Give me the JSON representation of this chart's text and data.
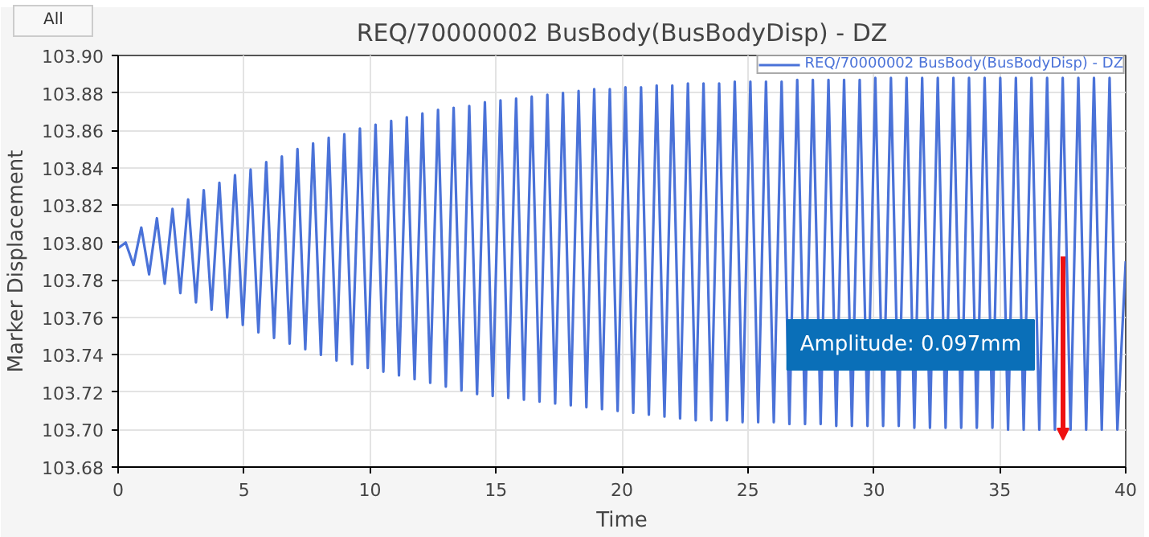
{
  "chart_data": {
    "type": "line",
    "title": "REQ/70000002 BusBody(BusBodyDisp) - DZ",
    "xlabel": "Time",
    "ylabel": "Marker Displacement",
    "xlim": [
      0,
      40
    ],
    "xticks": [
      0,
      5,
      10,
      15,
      20,
      25,
      30,
      35,
      40
    ],
    "ylim": [
      103.68,
      103.9
    ],
    "yticks": [
      {
        "value": 103.68,
        "label": "103.68"
      },
      {
        "value": 103.7,
        "label": "103.70"
      },
      {
        "value": 103.72,
        "label": "103.72"
      },
      {
        "value": 103.74,
        "label": "103.74"
      },
      {
        "value": 103.76,
        "label": "103.76"
      },
      {
        "value": 103.78,
        "label": "103.78"
      },
      {
        "value": 103.8,
        "label": "103.80"
      },
      {
        "value": 103.82,
        "label": "103.82"
      },
      {
        "value": 103.84,
        "label": "103.84"
      },
      {
        "value": 103.86,
        "label": "103.86"
      },
      {
        "value": 103.88,
        "label": "103.88"
      },
      {
        "value": 103.9,
        "label": "103.90"
      }
    ],
    "grid": true,
    "legend": "top right",
    "annotations": [
      "All",
      "Amplitude: 0.097mm"
    ],
    "series": [
      {
        "name": "REQ/70000002 BusBody(BusBodyDisp) - DZ",
        "color": "#4a72d8",
        "x": [
          0,
          0.3,
          0.61,
          0.92,
          1.23,
          1.54,
          1.85,
          2.16,
          2.47,
          2.78,
          3.09,
          3.4,
          3.71,
          4.02,
          4.33,
          4.64,
          4.95,
          5.26,
          5.57,
          5.88,
          6.19,
          6.5,
          6.81,
          7.12,
          7.43,
          7.74,
          8.05,
          8.36,
          8.67,
          8.98,
          9.29,
          9.6,
          9.91,
          10.22,
          10.53,
          10.84,
          11.15,
          11.46,
          11.77,
          12.08,
          12.39,
          12.7,
          13.01,
          13.32,
          13.63,
          13.94,
          14.25,
          14.56,
          14.87,
          15.18,
          15.49,
          15.8,
          16.11,
          16.42,
          16.73,
          17.04,
          17.35,
          17.66,
          17.97,
          18.28,
          18.59,
          18.9,
          19.21,
          19.52,
          19.83,
          20.14,
          20.45,
          20.76,
          21.07,
          21.38,
          21.69,
          22.0,
          22.31,
          22.62,
          22.93,
          23.24,
          23.55,
          23.86,
          24.17,
          24.48,
          24.79,
          25.1,
          25.41,
          25.72,
          26.03,
          26.34,
          26.65,
          26.96,
          27.27,
          27.58,
          27.89,
          28.2,
          28.51,
          28.82,
          29.13,
          29.44,
          29.75,
          30.06,
          30.37,
          30.68,
          30.99,
          31.3,
          31.61,
          31.92,
          32.23,
          32.54,
          32.85,
          33.16,
          33.47,
          33.78,
          34.09,
          34.4,
          34.71,
          35.02,
          35.33,
          35.64,
          35.95,
          36.26,
          36.57,
          36.88,
          37.19,
          37.5,
          37.81,
          38.12,
          38.43,
          38.74,
          39.05,
          39.36,
          39.67,
          40.0
        ],
        "values": [
          103.797,
          103.8,
          103.788,
          103.808,
          103.783,
          103.813,
          103.778,
          103.818,
          103.773,
          103.823,
          103.768,
          103.828,
          103.764,
          103.832,
          103.76,
          103.836,
          103.756,
          103.839,
          103.752,
          103.843,
          103.749,
          103.846,
          103.746,
          103.85,
          103.743,
          103.853,
          103.74,
          103.856,
          103.737,
          103.858,
          103.735,
          103.861,
          103.733,
          103.863,
          103.731,
          103.865,
          103.729,
          103.867,
          103.727,
          103.869,
          103.725,
          103.871,
          103.723,
          103.872,
          103.721,
          103.873,
          103.719,
          103.875,
          103.718,
          103.876,
          103.717,
          103.877,
          103.716,
          103.878,
          103.715,
          103.879,
          103.714,
          103.88,
          103.713,
          103.881,
          103.712,
          103.882,
          103.711,
          103.882,
          103.71,
          103.883,
          103.709,
          103.883,
          103.708,
          103.884,
          103.707,
          103.884,
          103.706,
          103.885,
          103.705,
          103.885,
          103.705,
          103.885,
          103.705,
          103.886,
          103.704,
          103.886,
          103.704,
          103.886,
          103.704,
          103.886,
          103.703,
          103.887,
          103.703,
          103.887,
          103.703,
          103.887,
          103.702,
          103.887,
          103.702,
          103.887,
          103.702,
          103.888,
          103.702,
          103.888,
          103.702,
          103.888,
          103.701,
          103.888,
          103.701,
          103.888,
          103.701,
          103.888,
          103.701,
          103.888,
          103.701,
          103.888,
          103.701,
          103.888,
          103.7,
          103.888,
          103.7,
          103.888,
          103.7,
          103.888,
          103.7,
          103.888,
          103.7,
          103.888,
          103.7,
          103.888,
          103.7,
          103.888,
          103.7,
          103.79
        ]
      }
    ]
  }
}
